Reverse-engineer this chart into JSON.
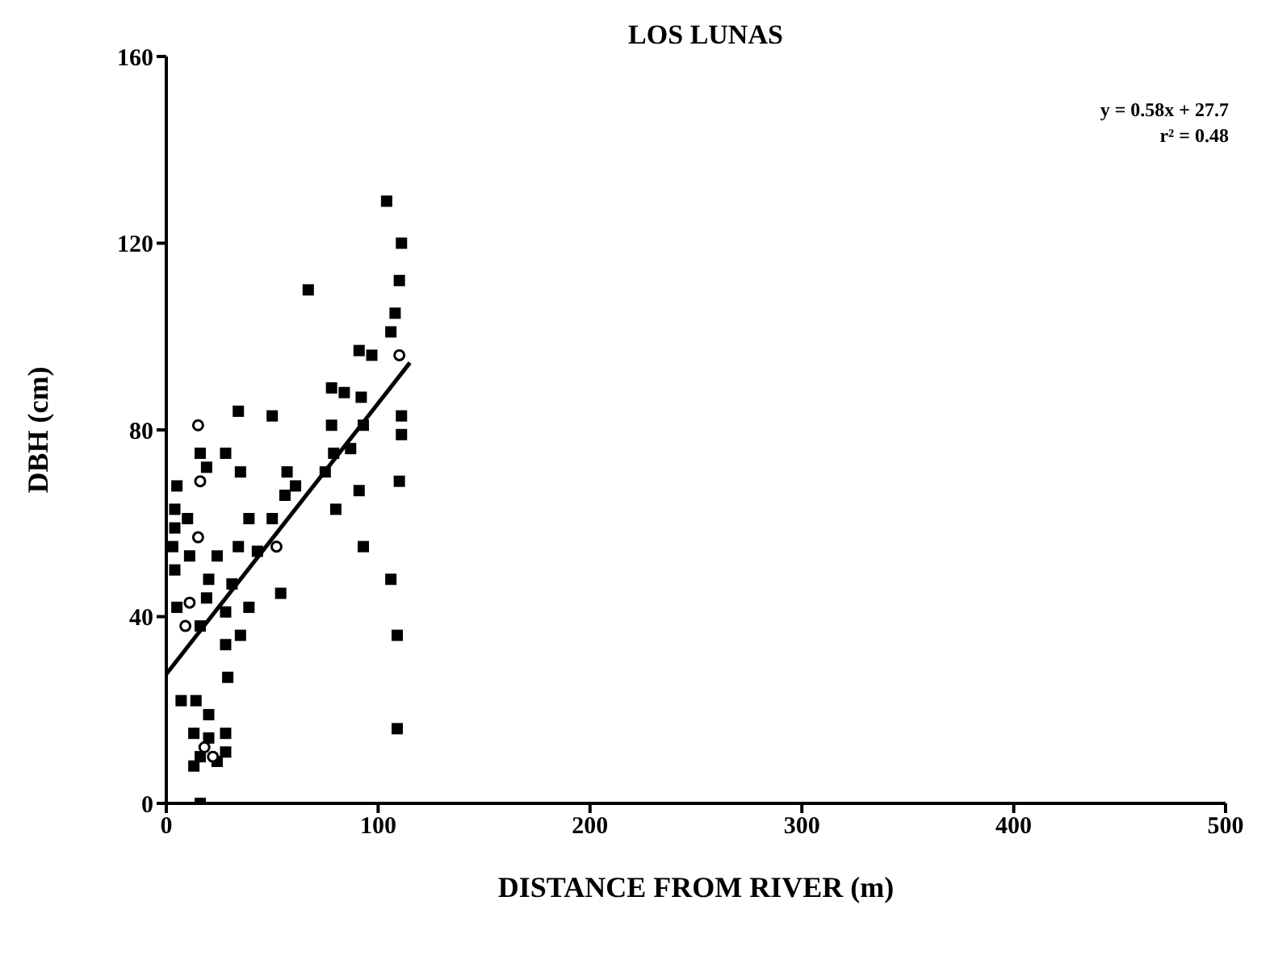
{
  "chart_data": {
    "type": "scatter",
    "title": "LOS LUNAS",
    "xlabel": "DISTANCE FROM RIVER (m)",
    "ylabel": "DBH (cm)",
    "annotations": [
      "y = 0.58x + 27.7",
      "r² = 0.48"
    ],
    "xlim": [
      0,
      500
    ],
    "xticks": [
      0,
      100,
      200,
      300,
      400,
      500
    ],
    "ylim": [
      0,
      160
    ],
    "yticks": [
      0,
      40,
      80,
      120,
      160
    ],
    "series": [
      {
        "marker": "square",
        "color": "#000000",
        "x": [
          104,
          111,
          110,
          108,
          106,
          67,
          91,
          97,
          78,
          84,
          92,
          78,
          93,
          111,
          111,
          110,
          87,
          79,
          75,
          91,
          80,
          93,
          106,
          109,
          109,
          34,
          50,
          16,
          28,
          19,
          35,
          57,
          61,
          56,
          50,
          39,
          10,
          4,
          3,
          11,
          24,
          34,
          43,
          4,
          20,
          31,
          5,
          19,
          28,
          39,
          54,
          16,
          35,
          28,
          29,
          7,
          14,
          20,
          13,
          20,
          28,
          16,
          24,
          28,
          13,
          16,
          5,
          4
        ],
        "values": [
          129,
          120,
          112,
          105,
          101,
          110,
          97,
          96,
          89,
          88,
          87,
          81,
          81,
          83,
          79,
          69,
          76,
          75,
          71,
          67,
          63,
          55,
          48,
          36,
          16,
          84,
          83,
          75,
          75,
          72,
          71,
          71,
          68,
          66,
          61,
          61,
          61,
          59,
          55,
          53,
          53,
          55,
          54,
          50,
          48,
          47,
          42,
          44,
          41,
          42,
          45,
          38,
          36,
          34,
          27,
          22,
          22,
          19,
          15,
          14,
          15,
          10,
          9,
          11,
          8,
          0,
          68,
          63
        ]
      },
      {
        "marker": "circle",
        "color": "#000000",
        "x": [
          15,
          16,
          15,
          110,
          52,
          11,
          9,
          22,
          18
        ],
        "values": [
          81,
          69,
          57,
          96,
          55,
          43,
          38,
          10,
          12
        ]
      },
      {
        "type": "line",
        "marker": "none",
        "color": "#000000",
        "x": [
          0,
          115
        ],
        "values": [
          27.7,
          94.4
        ]
      }
    ]
  }
}
